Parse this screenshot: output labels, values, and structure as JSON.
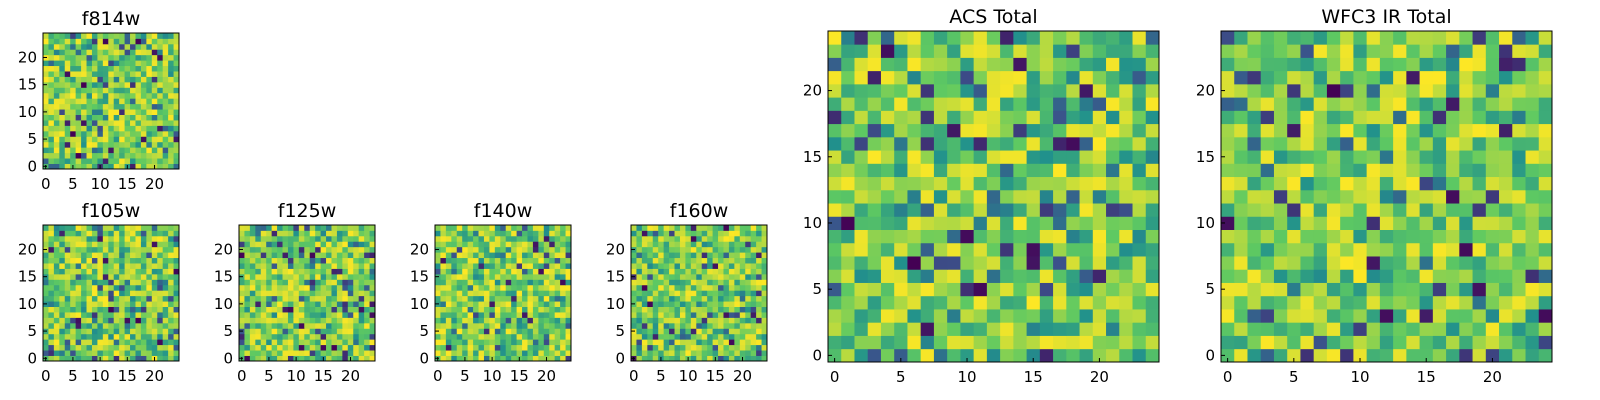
{
  "figure": {
    "description_colormap": "viridis"
  },
  "colormap": [
    "#440154",
    "#3b528b",
    "#21918c",
    "#5ec962",
    "#fde725"
  ],
  "chart_data": [
    {
      "id": "f814w",
      "type": "heatmap",
      "title": "f814w",
      "grid_size": 25,
      "seed": 11,
      "xticks": [
        "0",
        "5",
        "10",
        "15",
        "20"
      ],
      "yticks": [
        "0",
        "5",
        "10",
        "15",
        "20"
      ],
      "xlim": [
        0,
        24
      ],
      "ylim": [
        0,
        24
      ]
    },
    {
      "id": "f105w",
      "type": "heatmap",
      "title": "f105w",
      "grid_size": 25,
      "seed": 23,
      "xticks": [
        "0",
        "5",
        "10",
        "15",
        "20"
      ],
      "yticks": [
        "0",
        "5",
        "10",
        "15",
        "20"
      ],
      "xlim": [
        0,
        24
      ],
      "ylim": [
        0,
        24
      ]
    },
    {
      "id": "f125w",
      "type": "heatmap",
      "title": "f125w",
      "grid_size": 25,
      "seed": 37,
      "xticks": [
        "0",
        "5",
        "10",
        "15",
        "20"
      ],
      "yticks": [
        "0",
        "5",
        "10",
        "15",
        "20"
      ],
      "xlim": [
        0,
        24
      ],
      "ylim": [
        0,
        24
      ]
    },
    {
      "id": "f140w",
      "type": "heatmap",
      "title": "f140w",
      "grid_size": 25,
      "seed": 41,
      "xticks": [
        "0",
        "5",
        "10",
        "15",
        "20"
      ],
      "yticks": [
        "0",
        "5",
        "10",
        "15",
        "20"
      ],
      "xlim": [
        0,
        24
      ],
      "ylim": [
        0,
        24
      ]
    },
    {
      "id": "f160w",
      "type": "heatmap",
      "title": "f160w",
      "grid_size": 25,
      "seed": 53,
      "xticks": [
        "0",
        "5",
        "10",
        "15",
        "20"
      ],
      "yticks": [
        "0",
        "5",
        "10",
        "15",
        "20"
      ],
      "xlim": [
        0,
        24
      ],
      "ylim": [
        0,
        24
      ]
    },
    {
      "id": "acs-total",
      "type": "heatmap",
      "title": "ACS Total",
      "grid_size": 25,
      "seed": 67,
      "xticks": [
        "0",
        "5",
        "10",
        "15",
        "20"
      ],
      "yticks": [
        "0",
        "5",
        "10",
        "15",
        "20"
      ],
      "xlim": [
        0,
        24
      ],
      "ylim": [
        0,
        24
      ]
    },
    {
      "id": "wfc3-ir-total",
      "type": "heatmap",
      "title": "WFC3 IR Total",
      "grid_size": 25,
      "seed": 79,
      "xticks": [
        "0",
        "5",
        "10",
        "15",
        "20"
      ],
      "yticks": [
        "0",
        "5",
        "10",
        "15",
        "20"
      ],
      "xlim": [
        0,
        24
      ],
      "ylim": [
        0,
        24
      ]
    }
  ]
}
